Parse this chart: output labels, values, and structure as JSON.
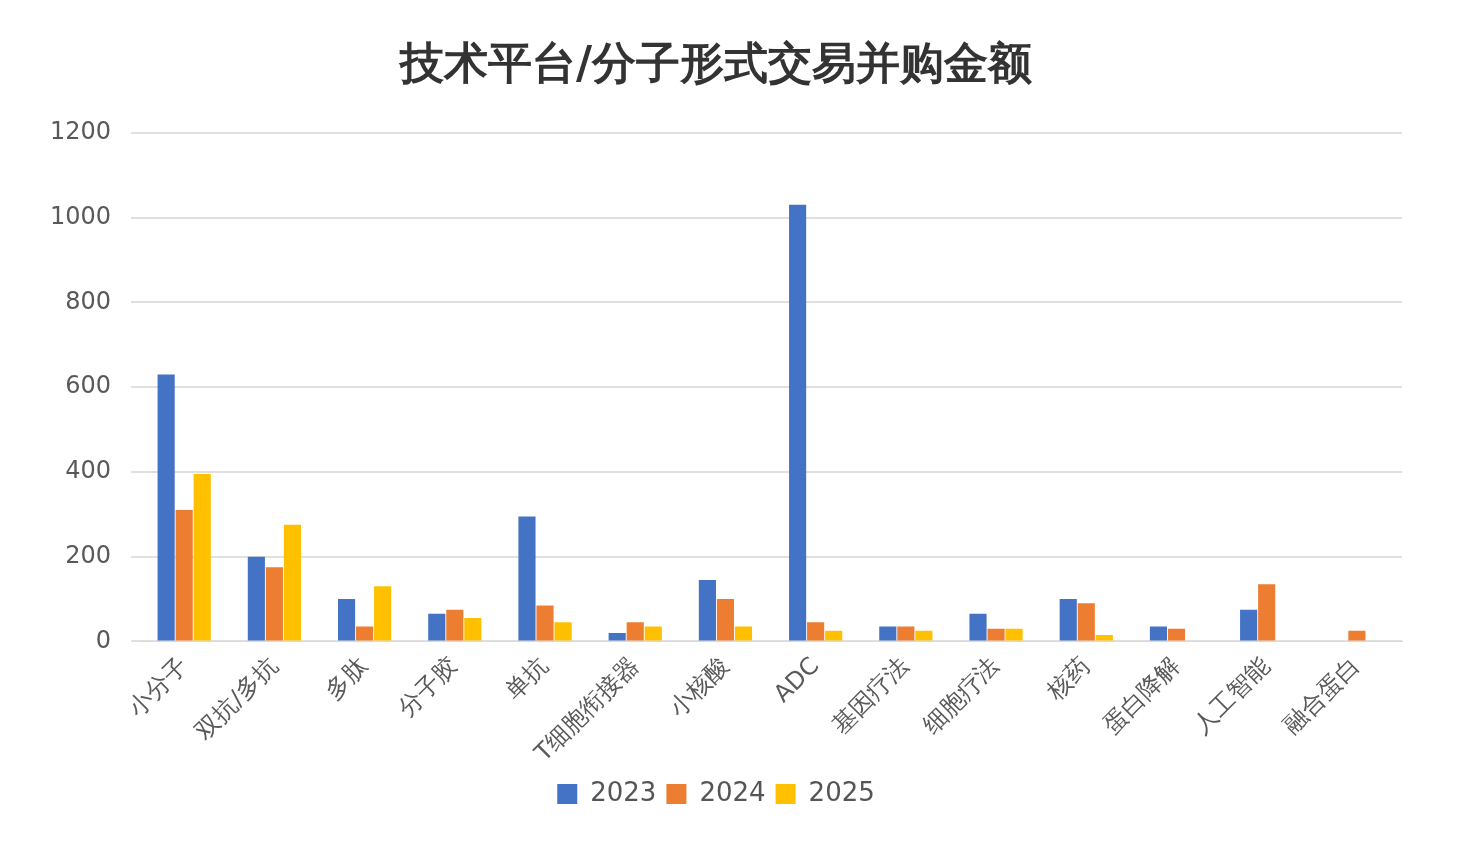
{
  "chart_data": {
    "type": "bar",
    "title": "技术平台/分子形式交易并购金额",
    "categories": [
      "小分子",
      "双抗/多抗",
      "多肽",
      "分子胶",
      "单抗",
      "T细胞衔接器",
      "小核酸",
      "ADC",
      "基因疗法",
      "细胞疗法",
      "核药",
      "蛋白降解",
      "人工智能",
      "融合蛋白"
    ],
    "series": [
      {
        "name": "2023",
        "color": "#4472c4",
        "values": [
          630,
          200,
          100,
          65,
          295,
          20,
          145,
          1030,
          35,
          65,
          100,
          35,
          75,
          null
        ]
      },
      {
        "name": "2024",
        "color": "#ed7d31",
        "values": [
          310,
          175,
          35,
          75,
          85,
          45,
          100,
          45,
          35,
          30,
          90,
          30,
          135,
          25
        ]
      },
      {
        "name": "2025",
        "color": "#ffc000",
        "values": [
          395,
          275,
          130,
          55,
          45,
          35,
          35,
          25,
          25,
          30,
          15,
          null,
          null,
          null
        ]
      }
    ],
    "ylim": [
      0,
      1200
    ],
    "yticks": [
      0,
      200,
      400,
      600,
      800,
      1000,
      1200
    ],
    "grid": "y",
    "legend": "bottom"
  }
}
